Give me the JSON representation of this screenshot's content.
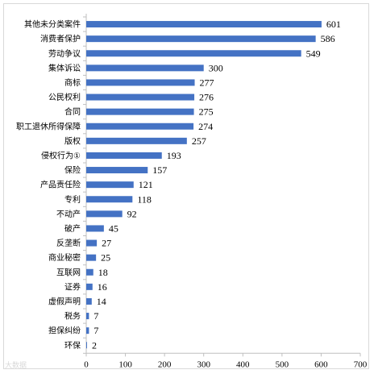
{
  "chart_data": {
    "type": "bar",
    "orientation": "horizontal",
    "categories": [
      "其他未分类案件",
      "消费者保护",
      "劳动争议",
      "集体诉讼",
      "商标",
      "公民权利",
      "合同",
      "职工退休所得保障",
      "版权",
      "侵权行为①",
      "保险",
      "产品责任险",
      "专利",
      "不动产",
      "破产",
      "反垄断",
      "商业秘密",
      "互联网",
      "证券",
      "虚假声明",
      "税务",
      "担保纠纷",
      "环保"
    ],
    "values": [
      601,
      586,
      549,
      300,
      277,
      276,
      275,
      274,
      257,
      193,
      157,
      121,
      118,
      92,
      45,
      27,
      25,
      18,
      16,
      14,
      7,
      7,
      2
    ],
    "xlim": [
      0,
      700
    ],
    "xticks": [
      "0",
      "100",
      "200",
      "300",
      "400",
      "500",
      "600",
      "700"
    ],
    "bar_color": "#4472C4",
    "grid": false,
    "data_labels": true
  },
  "watermark": "大数据"
}
